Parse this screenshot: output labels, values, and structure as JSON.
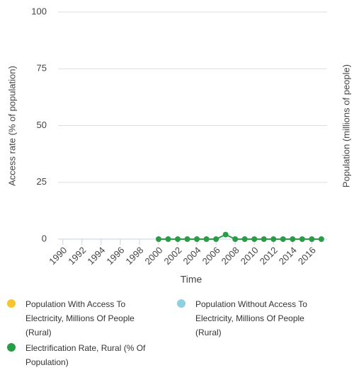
{
  "chart_data": {
    "type": "line",
    "y_label": "Access rate (% of population)",
    "y2_label": "Population (millions of people)",
    "x_label": "Time",
    "x": [
      1990,
      1991,
      1992,
      1993,
      1994,
      1995,
      1996,
      1997,
      1998,
      1999,
      2000,
      2001,
      2002,
      2003,
      2004,
      2005,
      2006,
      2007,
      2008,
      2009,
      2010,
      2011,
      2012,
      2013,
      2014,
      2015,
      2016,
      2017
    ],
    "series": [
      {
        "name": "Population With Access To Electricity, Millions Of People (Rural)",
        "color": "#f7c52f",
        "axis": "y2",
        "values": [
          null,
          null,
          null,
          null,
          null,
          null,
          null,
          null,
          null,
          null,
          null,
          null,
          null,
          null,
          null,
          null,
          null,
          null,
          null,
          null,
          null,
          null,
          null,
          null,
          null,
          null,
          null,
          null
        ]
      },
      {
        "name": "Population Without Access To Electricity, Millions Of People (Rural)",
        "color": "#8fd0e0",
        "axis": "y2",
        "values": [
          null,
          null,
          null,
          null,
          null,
          null,
          null,
          null,
          null,
          null,
          null,
          null,
          null,
          null,
          null,
          null,
          null,
          null,
          null,
          null,
          null,
          null,
          null,
          null,
          null,
          null,
          null,
          null
        ]
      },
      {
        "name": "Electrification Rate, Rural (% Of Population)",
        "color": "#2a9c48",
        "values": [
          null,
          null,
          null,
          null,
          null,
          null,
          null,
          null,
          null,
          null,
          0,
          0,
          0,
          0,
          0,
          0,
          0,
          2,
          0,
          0,
          0,
          0,
          0,
          0,
          0,
          0,
          0,
          0
        ]
      }
    ],
    "xlim": [
      1989.5,
      2017.6
    ],
    "xticks": [
      1990,
      1992,
      1994,
      1996,
      1998,
      2000,
      2002,
      2004,
      2006,
      2008,
      2010,
      2012,
      2014,
      2016
    ],
    "ylim": [
      0,
      100
    ],
    "yticks": [
      0,
      25,
      50,
      75,
      100
    ],
    "grid": true
  }
}
